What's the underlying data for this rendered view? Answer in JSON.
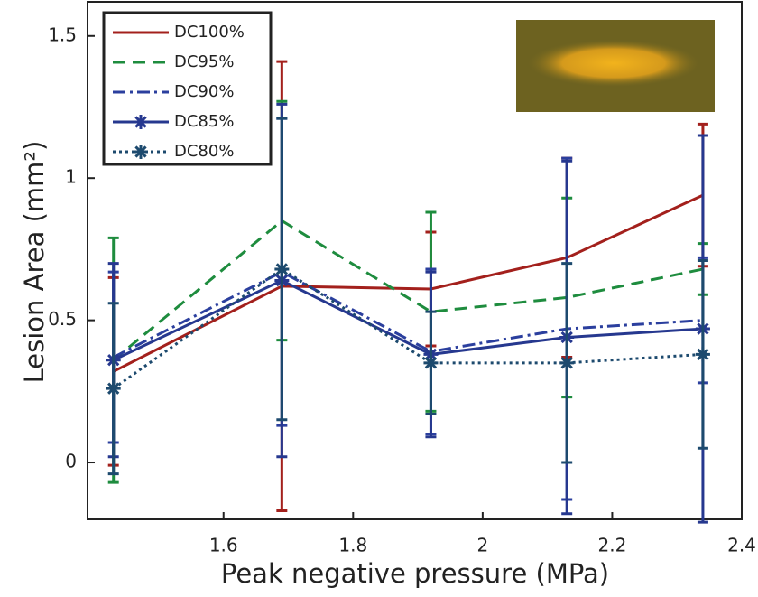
{
  "chart_data": {
    "type": "line",
    "xlabel": "Peak negative pressure (MPa)",
    "ylabel": "Lesion Area (mm²)",
    "x": [
      1.43,
      1.69,
      1.92,
      2.13,
      2.34
    ],
    "series": [
      {
        "name": "DC100%",
        "color": "#a3201c",
        "linestyle": "solid",
        "marker": "none",
        "values": [
          0.32,
          0.62,
          0.61,
          0.72,
          0.94
        ],
        "err": [
          0.33,
          0.79,
          0.2,
          0.35,
          0.25
        ]
      },
      {
        "name": "DC95%",
        "color": "#1e8c3e",
        "linestyle": "dashed",
        "marker": "none",
        "values": [
          0.36,
          0.85,
          0.53,
          0.58,
          0.68
        ],
        "err": [
          0.43,
          0.42,
          0.35,
          0.35,
          0.09
        ]
      },
      {
        "name": "DC90%",
        "color": "#2b3f9e",
        "linestyle": "dashdot",
        "marker": "none",
        "values": [
          0.37,
          0.67,
          0.39,
          0.47,
          0.5
        ],
        "err": [
          0.3,
          0.54,
          0.29,
          0.6,
          0.22
        ]
      },
      {
        "name": "DC85%",
        "color": "#26388f",
        "linestyle": "solid",
        "marker": "star",
        "values": [
          0.36,
          0.64,
          0.38,
          0.44,
          0.47
        ],
        "err": [
          0.34,
          0.62,
          0.29,
          0.62,
          0.68
        ]
      },
      {
        "name": "DC80%",
        "color": "#1d4a6e",
        "linestyle": "dotted",
        "marker": "star",
        "values": [
          0.26,
          0.68,
          0.35,
          0.35,
          0.38
        ],
        "err": [
          0.3,
          0.53,
          0.18,
          0.35,
          0.33
        ]
      }
    ],
    "xlim": [
      1.39,
      2.4
    ],
    "xticks": [
      1.6,
      1.8,
      2,
      2.2,
      2.4
    ],
    "ylim": [
      -0.2,
      1.62
    ],
    "yticks": [
      0,
      0.5,
      1,
      1.5
    ],
    "grid": false,
    "legend": "upper left"
  }
}
